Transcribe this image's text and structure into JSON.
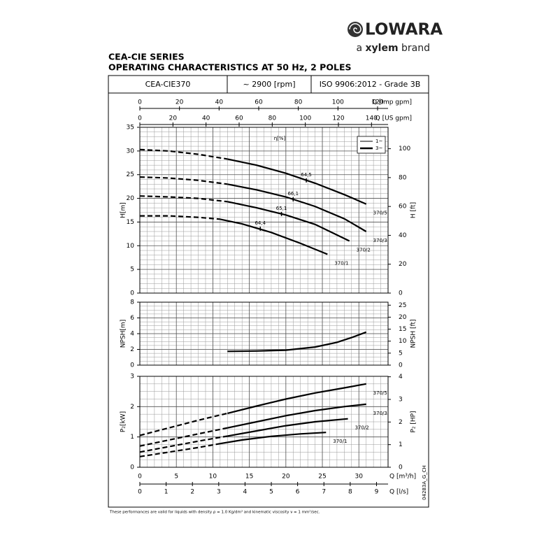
{
  "logo": {
    "name": "LOWARA",
    "tagline_prefix": "a",
    "tagline_brand": "xylem",
    "tagline_suffix": "brand"
  },
  "title": [
    "CEA-CIE SERIES",
    "OPERATING CHARACTERISTICS AT 50 Hz, 2 POLES"
  ],
  "header": [
    "CEA-CIE370",
    "~ 2900 [rpm]",
    "ISO 9906:2012 - Grade 3B"
  ],
  "footnote": "These performances are valid for liquids with density ρ = 1.0 Kg/dm³ and kinematic viscosity ν = 1 mm²/sec.",
  "code": "04283A_G_CH",
  "chart_data": [
    {
      "type": "line",
      "y_label": "H[m]",
      "y2_label": "H [ft]",
      "xlim": [
        0,
        34
      ],
      "ylim": [
        0,
        35
      ],
      "yticks": [
        0,
        5,
        10,
        15,
        20,
        25,
        30,
        35
      ],
      "y2lim": [
        0,
        114.83
      ],
      "y2ticks": [
        0,
        20,
        40,
        60,
        80,
        100
      ],
      "grid_divisions": [
        5,
        5
      ],
      "top_axes": [
        {
          "label": "Q [Imp gpm]",
          "lim": [
            0,
            125.3
          ],
          "ticks": [
            0,
            20,
            40,
            60,
            80,
            100,
            120
          ]
        },
        {
          "label": "Q [US gpm]",
          "lim": [
            0,
            150
          ],
          "ticks": [
            0,
            20,
            40,
            60,
            80,
            100,
            120,
            140
          ]
        }
      ],
      "legend": {
        "position": "upper right",
        "entries": [
          {
            "label": "1~",
            "line_width": 1
          },
          {
            "label": "3~",
            "line_width": 2.5
          }
        ]
      },
      "efficiency": {
        "label": "η[%]",
        "points": [
          {
            "x": 22.8,
            "y": 23.8,
            "value": 64.5,
            "label": "64,5"
          },
          {
            "x": 21,
            "y": 19.8,
            "value": 66.1,
            "label": "66,1"
          },
          {
            "x": 19.4,
            "y": 16.7,
            "value": 65.1,
            "label": "65,1"
          },
          {
            "x": 16.5,
            "y": 13.6,
            "value": 64.4,
            "label": "64,4"
          }
        ]
      },
      "series": [
        {
          "name": "370/5",
          "color": "#000000",
          "dashed_until": 12,
          "x": [
            0,
            4,
            8,
            12,
            16,
            20,
            24,
            28,
            31
          ],
          "values": [
            30.3,
            30,
            29.3,
            28.3,
            27,
            25.3,
            23.2,
            20.8,
            18.8
          ]
        },
        {
          "name": "370/3",
          "color": "#000000",
          "dashed_until": 12,
          "x": [
            0,
            4,
            8,
            12,
            16,
            20,
            24,
            28,
            31
          ],
          "values": [
            24.5,
            24.3,
            23.8,
            23,
            21.8,
            20.3,
            18.3,
            15.7,
            13
          ]
        },
        {
          "name": "370/2",
          "color": "#000000",
          "dashed_until": 12,
          "x": [
            0,
            4,
            8,
            12,
            16,
            20,
            24,
            28.7
          ],
          "values": [
            20.5,
            20.3,
            20,
            19.3,
            18,
            16.5,
            14.5,
            11
          ]
        },
        {
          "name": "370/1",
          "color": "#000000",
          "dashed_until": 11,
          "x": [
            0,
            4,
            8,
            11,
            14,
            18,
            22,
            25.7
          ],
          "values": [
            16.3,
            16.3,
            16,
            15.6,
            14.6,
            12.8,
            10.5,
            8.2
          ]
        }
      ]
    },
    {
      "type": "line",
      "y_label": "NPSH[m]",
      "y2_label": "NPSH [ft]",
      "xlim": [
        0,
        34
      ],
      "ylim": [
        0,
        8
      ],
      "yticks": [
        0,
        2,
        4,
        6,
        8
      ],
      "y2lim": [
        0,
        26.25
      ],
      "y2ticks": [
        0,
        5,
        10,
        15,
        20,
        25
      ],
      "grid_divisions": [
        5,
        4
      ],
      "series": [
        {
          "color": "#000000",
          "x": [
            12,
            16,
            20,
            24,
            27,
            29,
            31
          ],
          "values": [
            1.75,
            1.8,
            1.9,
            2.3,
            2.9,
            3.5,
            4.2
          ]
        }
      ]
    },
    {
      "type": "line",
      "y_label": "P₂[kW]",
      "y2_label": "P₂ [HP]",
      "x_label": "Q [m³/h]",
      "xlim": [
        0,
        34
      ],
      "xticks": [
        0,
        5,
        10,
        15,
        20,
        25,
        30
      ],
      "ylim": [
        0,
        3
      ],
      "yticks": [
        0,
        1,
        2,
        3
      ],
      "y2lim": [
        0,
        4.02
      ],
      "y2ticks": [
        0,
        1,
        2,
        3,
        4
      ],
      "grid_divisions": [
        5,
        4
      ],
      "bottom_axes": [
        {
          "label": "Q [l/s]",
          "lim": [
            0,
            9.44
          ],
          "ticks": [
            0,
            1,
            2,
            3,
            4,
            5,
            6,
            7,
            8,
            9
          ]
        }
      ],
      "series": [
        {
          "name": "370/5",
          "color": "#000000",
          "dashed_until": 12,
          "x": [
            0,
            4,
            8,
            12,
            16,
            20,
            24,
            28,
            31
          ],
          "values": [
            1.05,
            1.3,
            1.55,
            1.78,
            2.02,
            2.25,
            2.45,
            2.62,
            2.75
          ]
        },
        {
          "name": "370/3",
          "color": "#000000",
          "dashed_until": 12,
          "x": [
            0,
            4,
            8,
            12,
            16,
            20,
            24,
            28,
            31
          ],
          "values": [
            0.7,
            0.9,
            1.1,
            1.3,
            1.5,
            1.7,
            1.87,
            2.0,
            2.08
          ]
        },
        {
          "name": "370/2",
          "color": "#000000",
          "dashed_until": 12,
          "x": [
            0,
            4,
            8,
            12,
            16,
            20,
            24,
            28.5
          ],
          "values": [
            0.5,
            0.68,
            0.86,
            1.03,
            1.2,
            1.37,
            1.5,
            1.6
          ]
        },
        {
          "name": "370/1",
          "color": "#000000",
          "dashed_until": 11,
          "x": [
            0,
            4,
            8,
            11,
            14,
            18,
            22,
            25.5
          ],
          "values": [
            0.35,
            0.5,
            0.65,
            0.78,
            0.9,
            1.02,
            1.1,
            1.15
          ]
        }
      ]
    }
  ]
}
